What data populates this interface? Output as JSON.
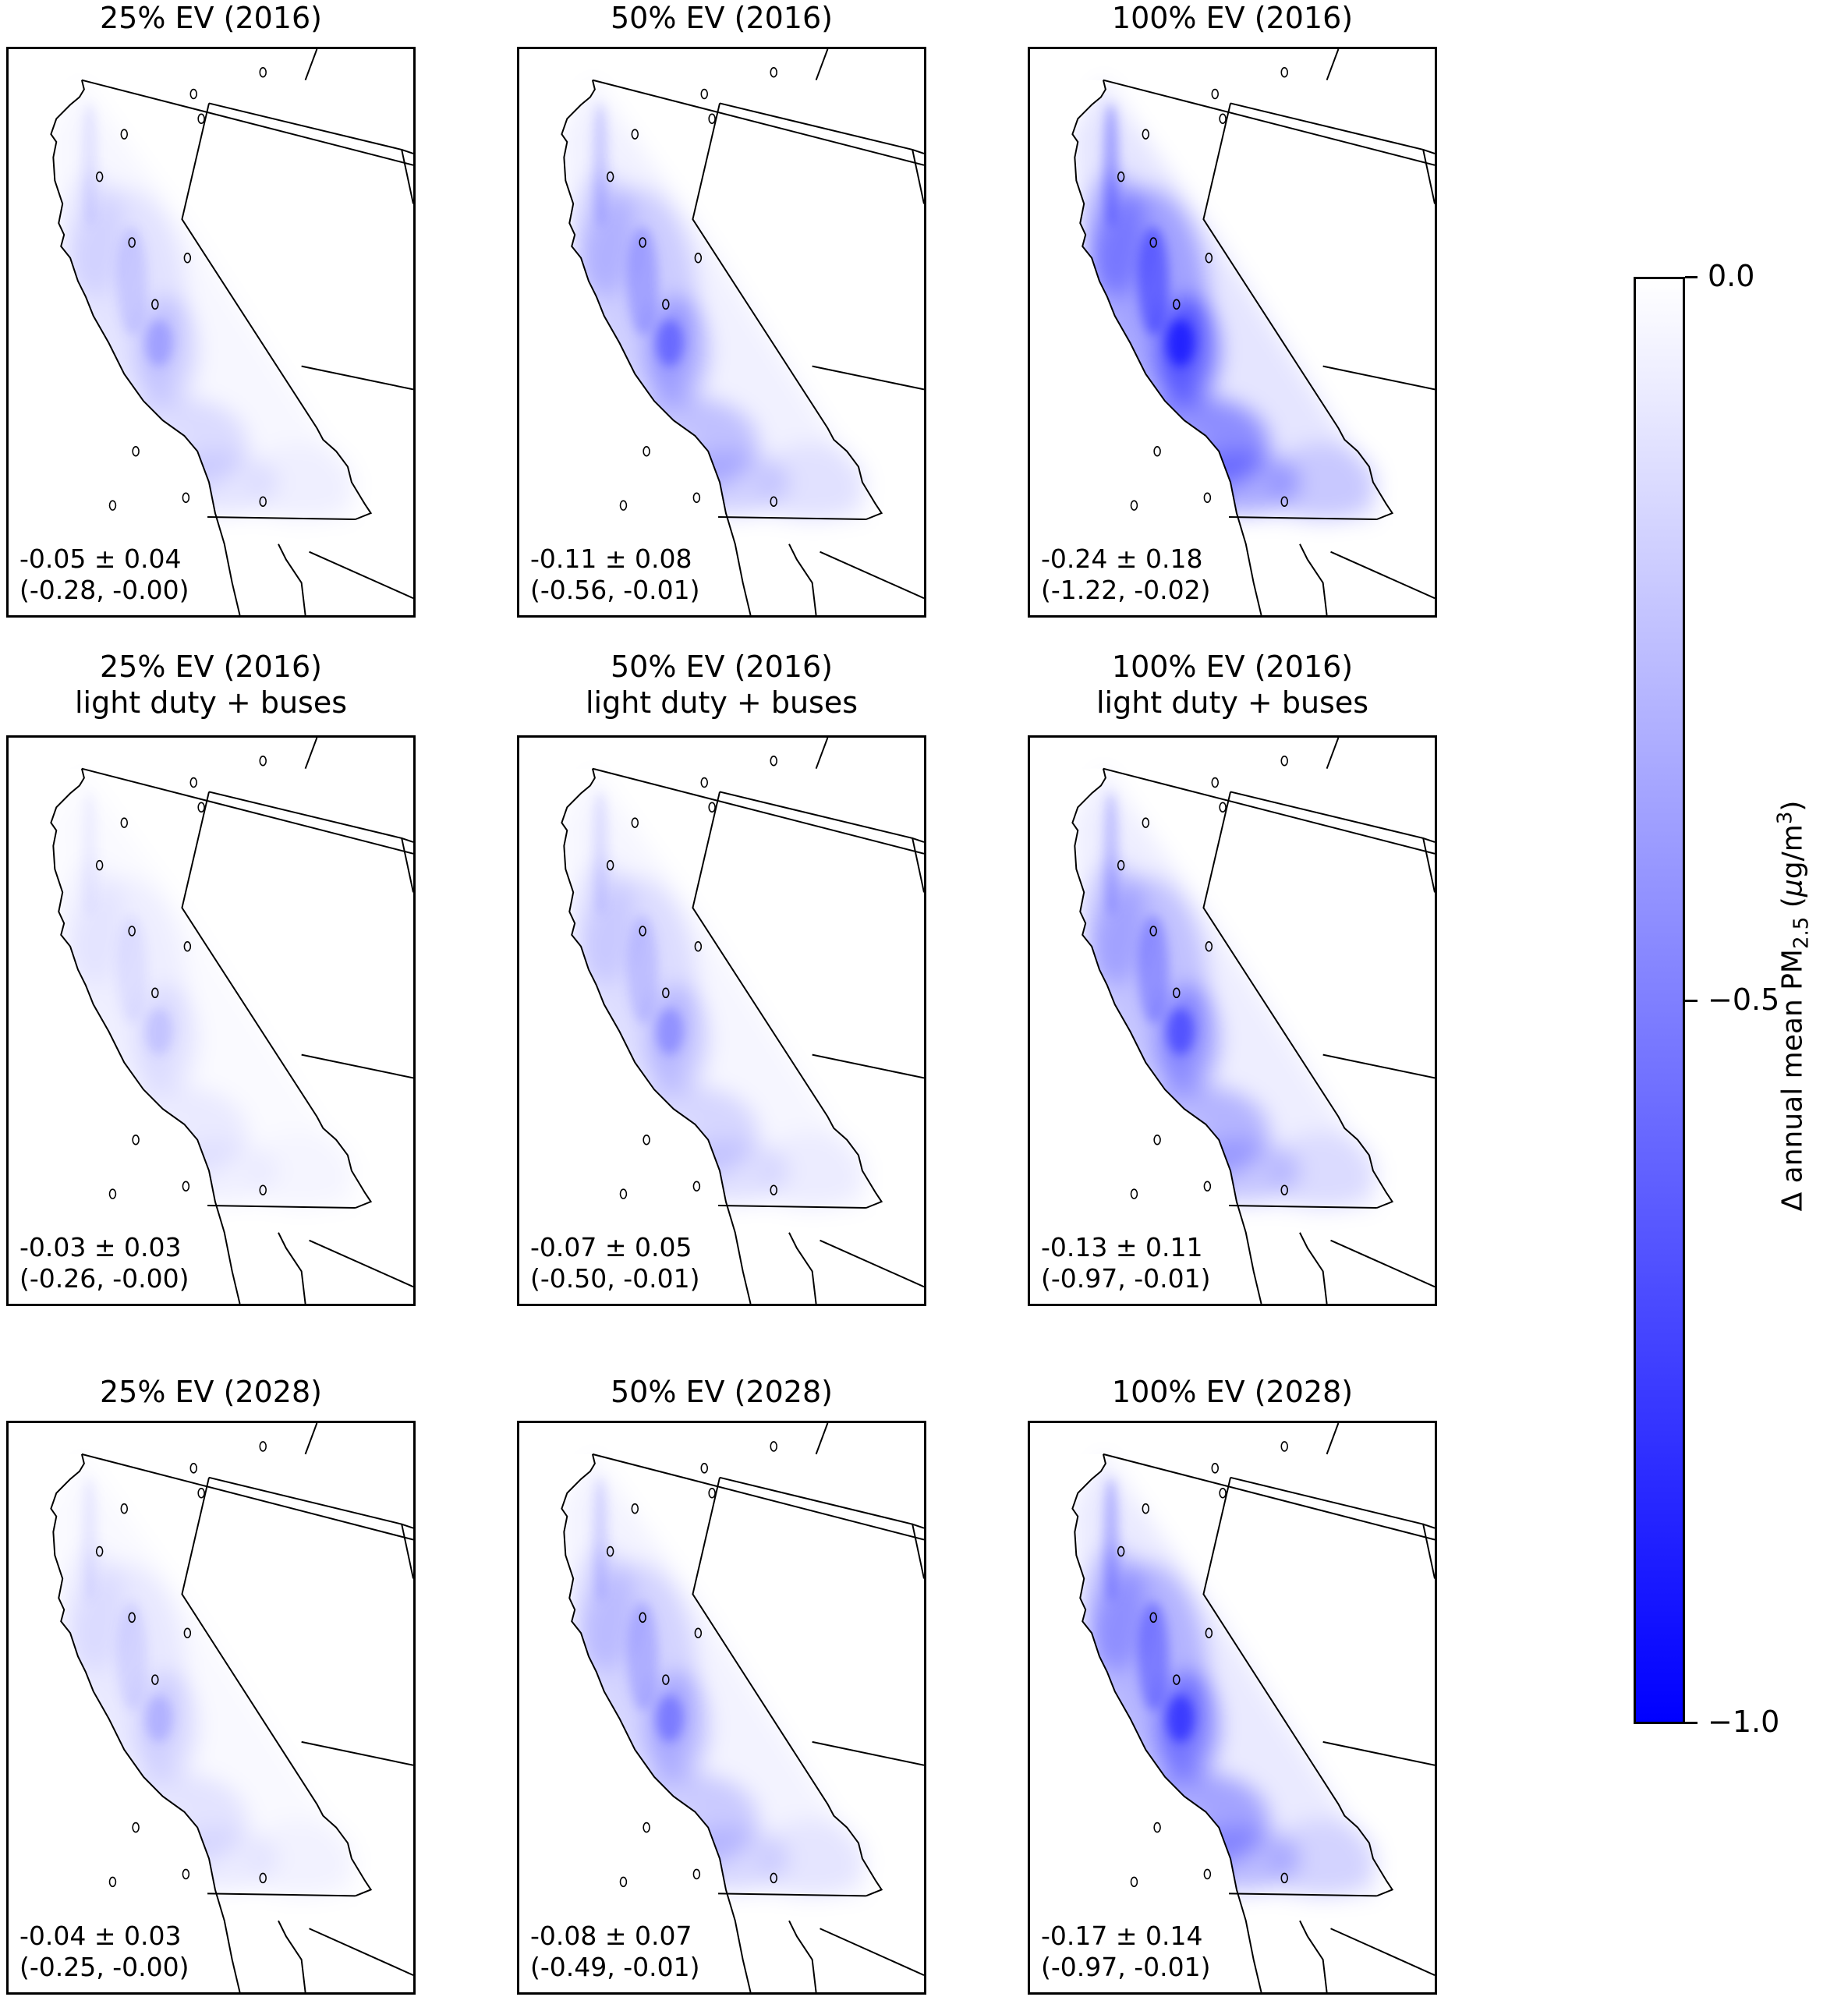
{
  "panels": [
    {
      "title": [
        "25% EV (2016)"
      ],
      "stats_line1": "-0.05 ± 0.04",
      "stats_line2": "(-0.28, -0.00)",
      "intensity": 0.25
    },
    {
      "title": [
        "50% EV (2016)"
      ],
      "stats_line1": "-0.11 ± 0.08",
      "stats_line2": "(-0.56, -0.01)",
      "intensity": 0.45
    },
    {
      "title": [
        "100% EV (2016)"
      ],
      "stats_line1": "-0.24 ± 0.18",
      "stats_line2": "(-1.22, -0.02)",
      "intensity": 0.85
    },
    {
      "title": [
        "25% EV (2016)",
        "light duty + buses"
      ],
      "stats_line1": "-0.03 ± 0.03",
      "stats_line2": "(-0.26, -0.00)",
      "intensity": 0.15
    },
    {
      "title": [
        "50% EV (2016)",
        "light duty + buses"
      ],
      "stats_line1": "-0.07 ± 0.05",
      "stats_line2": "(-0.50, -0.01)",
      "intensity": 0.3
    },
    {
      "title": [
        "100% EV (2016)",
        "light duty + buses"
      ],
      "stats_line1": "-0.13 ± 0.11",
      "stats_line2": "(-0.97, -0.01)",
      "intensity": 0.55
    },
    {
      "title": [
        "25% EV (2028)"
      ],
      "stats_line1": "-0.04 ± 0.03",
      "stats_line2": "(-0.25, -0.00)",
      "intensity": 0.2
    },
    {
      "title": [
        "50% EV (2028)"
      ],
      "stats_line1": "-0.08 ± 0.07",
      "stats_line2": "(-0.49, -0.01)",
      "intensity": 0.38
    },
    {
      "title": [
        "100% EV (2028)"
      ],
      "stats_line1": "-0.17 ± 0.14",
      "stats_line2": "(-0.97, -0.01)",
      "intensity": 0.68
    }
  ],
  "colorbar": {
    "label": "Δ annual mean PM2.5 (μg/m3)",
    "label_main": "Δ annual mean PM",
    "label_sub": "2.5",
    "label_unit_pre": " (",
    "label_unit_mu": "μ",
    "label_unit_mid": "g/m",
    "label_unit_sup": "3",
    "label_unit_post": ")",
    "ticks": [
      "0.0",
      "−0.5",
      "−1.0"
    ],
    "range": [
      -1.0,
      0.0
    ],
    "color_min": "#0000ff",
    "color_max": "#ffffff"
  }
}
